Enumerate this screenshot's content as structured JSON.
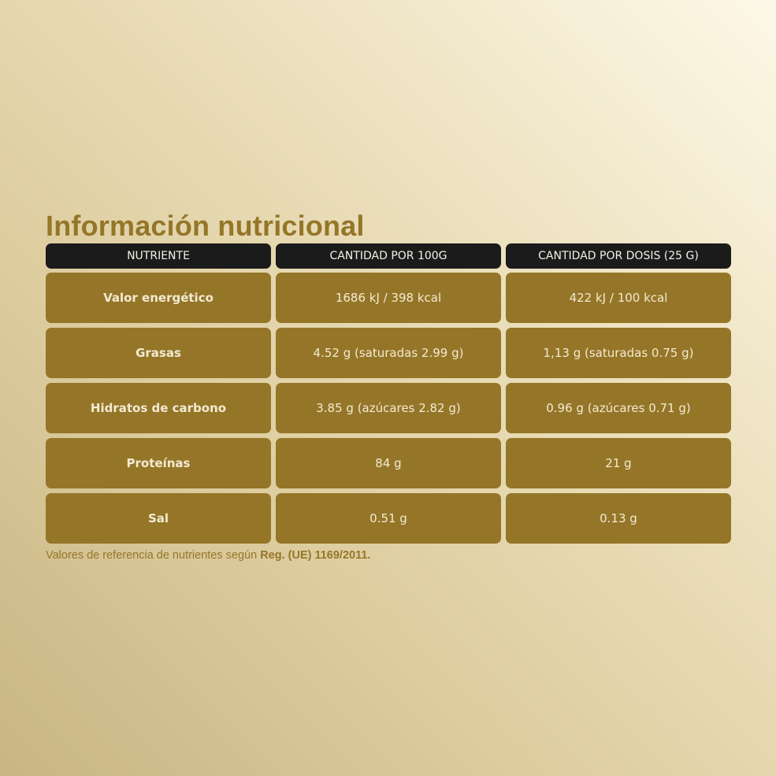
{
  "title": "Información nutricional",
  "headers": [
    "NUTRIENTE",
    "CANTIDAD POR 100G",
    "CANTIDAD POR DOSIS (25 G)"
  ],
  "rows": [
    {
      "nutrient": "Valor energético",
      "per100": "1686 kJ / 398 kcal",
      "perDose": "422 kJ / 100 kcal"
    },
    {
      "nutrient": "Grasas",
      "per100": "4.52 g (saturadas 2.99 g)",
      "perDose": "1,13 g (saturadas 0.75 g)"
    },
    {
      "nutrient": "Hidratos de carbono",
      "per100": "3.85 g (azúcares 2.82 g)",
      "perDose": "0.96 g (azúcares 0.71 g)"
    },
    {
      "nutrient": "Proteínas",
      "per100": "84 g",
      "perDose": "21 g"
    },
    {
      "nutrient": "Sal",
      "per100": "0.51 g",
      "perDose": "0.13 g"
    }
  ],
  "footnote": {
    "text": "Valores de referencia de nutrientes según ",
    "bold": "Reg. (UE) 1169/2011."
  },
  "colors": {
    "accent": "#957628",
    "header_bg": "#1b1b1b"
  }
}
